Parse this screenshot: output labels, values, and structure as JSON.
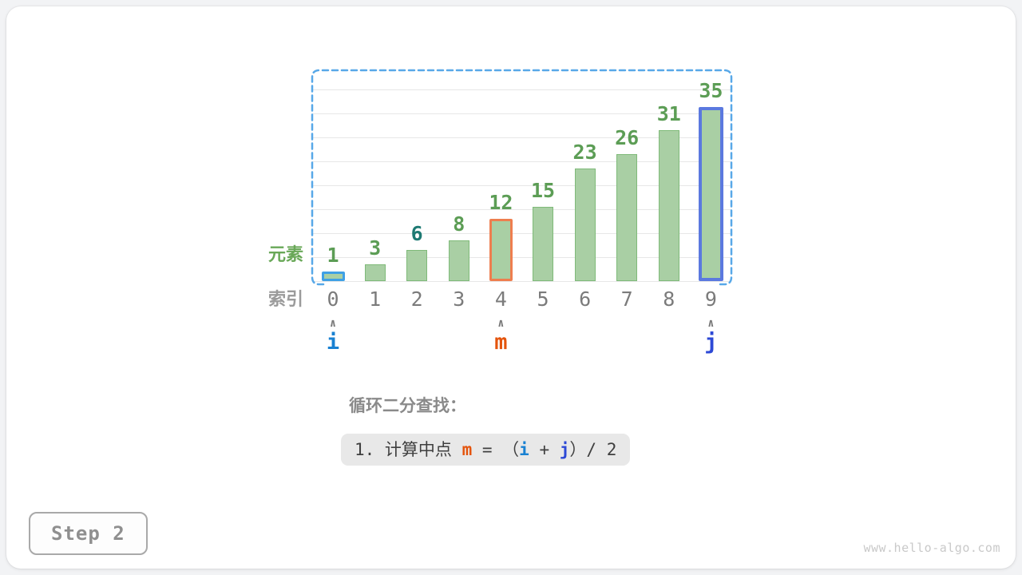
{
  "page": {
    "step_label": "Step 2",
    "watermark": "www.hello-algo.com"
  },
  "chart_data": {
    "type": "bar",
    "title": "",
    "categories": [
      "0",
      "1",
      "2",
      "3",
      "4",
      "5",
      "6",
      "7",
      "8",
      "9"
    ],
    "values": [
      1,
      3,
      6,
      8,
      12,
      15,
      23,
      26,
      31,
      35
    ],
    "xlabel": "索引",
    "ylabel": "元素",
    "ylim": [
      0,
      40
    ],
    "grid_step": 5,
    "grid": "on",
    "target_index": 2,
    "highlights": [
      {
        "index": 0,
        "pointer": "i"
      },
      {
        "index": 4,
        "pointer": "m"
      },
      {
        "index": 9,
        "pointer": "j"
      }
    ],
    "search_range": {
      "from_index": 0,
      "to_index": 9
    }
  },
  "axis": {
    "element_label": "元素",
    "index_label": "索引"
  },
  "pointers": [
    {
      "label": "i",
      "index": 0,
      "caret": "∧"
    },
    {
      "label": "m",
      "index": 4,
      "caret": "∧"
    },
    {
      "label": "j",
      "index": 9,
      "caret": "∧"
    }
  ],
  "caption": {
    "heading": "循环二分查找：",
    "formula_parts": [
      {
        "text": "1. 计算中点 ",
        "color": "plain"
      },
      {
        "text": "m",
        "color": "m"
      },
      {
        "text": " = （",
        "color": "plain"
      },
      {
        "text": "i",
        "color": "i"
      },
      {
        "text": " + ",
        "color": "plain"
      },
      {
        "text": "j",
        "color": "j"
      },
      {
        "text": "）/ 2",
        "color": "plain"
      }
    ]
  },
  "colors": {
    "bar_fill": "#A9CFA4",
    "bar_stroke": "#7FBA79",
    "value_text": "#5C9D55",
    "target_value_text": "#1E7A73",
    "pointer_i": "#1981D2",
    "pointer_m": "#E4540C",
    "pointer_j": "#2D49D6",
    "border_i": "#3FA0E5",
    "border_m": "#EE7E4F",
    "border_j": "#5B79DF",
    "bracket": "#58A8E8",
    "gridline": "#E7E7E7",
    "axis_text": "#7B7B7B",
    "caret": "#7A7A7A",
    "element_label": "#69A858",
    "index_label": "#9B9B9B",
    "heading_gray": "#8A8A8A",
    "code_text": "#3F3F3F",
    "code_bg": "#E8E8E8",
    "step_text": "#8F8F8F",
    "watermark": "#C9C9C9"
  }
}
